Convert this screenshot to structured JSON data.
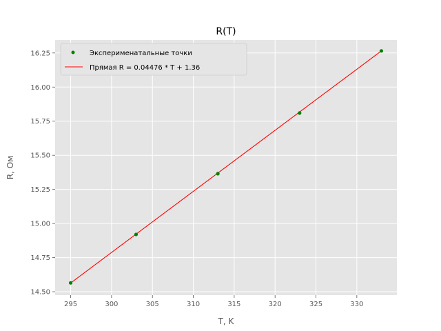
{
  "chart_data": {
    "type": "scatter",
    "title": "R(T)",
    "xlabel": "T, K",
    "ylabel": "R, Ом",
    "xlim": [
      293.1,
      334.9
    ],
    "ylim": [
      14.475,
      16.345
    ],
    "xticks": [
      295,
      300,
      305,
      310,
      315,
      320,
      325,
      330
    ],
    "yticks": [
      14.5,
      14.75,
      15.0,
      15.25,
      15.5,
      15.75,
      16.0,
      16.25
    ],
    "xtick_labels": [
      "295",
      "300",
      "305",
      "310",
      "315",
      "320",
      "325",
      "330"
    ],
    "ytick_labels": [
      "14.50",
      "14.75",
      "15.00",
      "15.25",
      "15.50",
      "15.75",
      "16.00",
      "16.25"
    ],
    "grid": true,
    "legend_position": "top-left",
    "series": [
      {
        "name": "Эксперименатальные точки",
        "kind": "scatter",
        "color": "#008000",
        "x": [
          295,
          303,
          313,
          323,
          333
        ],
        "y": [
          14.565,
          14.92,
          15.365,
          15.81,
          16.265
        ]
      },
      {
        "name": "Прямая R = 0.04476 * T + 1.36",
        "kind": "line",
        "color": "#ff0000",
        "x": [
          295,
          333
        ],
        "y": [
          14.564,
          16.265
        ]
      }
    ]
  }
}
